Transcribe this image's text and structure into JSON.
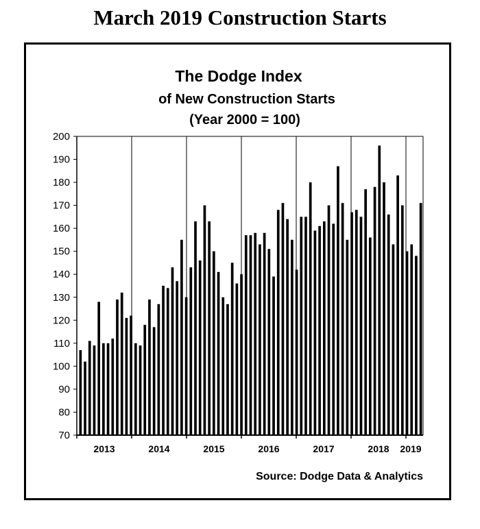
{
  "page": {
    "title": "March 2019 Construction Starts"
  },
  "chart_data": {
    "type": "bar",
    "title": "The Dodge Index",
    "subtitle": "of New Construction Starts",
    "subtitle2": "(Year 2000 = 100)",
    "ylim": [
      70,
      200
    ],
    "yticks": [
      70,
      80,
      90,
      100,
      110,
      120,
      130,
      140,
      150,
      160,
      170,
      180,
      190,
      200
    ],
    "grid": "vertical",
    "year_labels": [
      "2013",
      "2014",
      "2015",
      "2016",
      "2017",
      "2018",
      "2019"
    ],
    "categories": [
      "2013-01",
      "2013-02",
      "2013-03",
      "2013-04",
      "2013-05",
      "2013-06",
      "2013-07",
      "2013-08",
      "2013-09",
      "2013-10",
      "2013-11",
      "2013-12",
      "2014-01",
      "2014-02",
      "2014-03",
      "2014-04",
      "2014-05",
      "2014-06",
      "2014-07",
      "2014-08",
      "2014-09",
      "2014-10",
      "2014-11",
      "2014-12",
      "2015-01",
      "2015-02",
      "2015-03",
      "2015-04",
      "2015-05",
      "2015-06",
      "2015-07",
      "2015-08",
      "2015-09",
      "2015-10",
      "2015-11",
      "2015-12",
      "2016-01",
      "2016-02",
      "2016-03",
      "2016-04",
      "2016-05",
      "2016-06",
      "2016-07",
      "2016-08",
      "2016-09",
      "2016-10",
      "2016-11",
      "2016-12",
      "2017-01",
      "2017-02",
      "2017-03",
      "2017-04",
      "2017-05",
      "2017-06",
      "2017-07",
      "2017-08",
      "2017-09",
      "2017-10",
      "2017-11",
      "2017-12",
      "2018-01",
      "2018-02",
      "2018-03",
      "2018-04",
      "2018-05",
      "2018-06",
      "2018-07",
      "2018-08",
      "2018-09",
      "2018-10",
      "2018-11",
      "2018-12",
      "2019-01",
      "2019-02",
      "2019-03"
    ],
    "values": [
      107,
      102,
      111,
      109,
      128,
      110,
      110,
      112,
      129,
      132,
      121,
      122,
      110,
      109,
      118,
      129,
      117,
      127,
      135,
      134,
      143,
      137,
      155,
      130,
      143,
      163,
      146,
      170,
      163,
      150,
      141,
      130,
      127,
      145,
      136,
      140,
      157,
      157,
      158,
      153,
      158,
      151,
      139,
      168,
      171,
      164,
      155,
      142,
      165,
      165,
      180,
      159,
      161,
      163,
      170,
      162,
      187,
      171,
      155,
      167,
      168,
      165,
      177,
      156,
      178,
      196,
      180,
      166,
      153,
      183,
      170,
      150,
      153,
      148,
      171
    ],
    "source": "Source:  Dodge Data & Analytics"
  }
}
